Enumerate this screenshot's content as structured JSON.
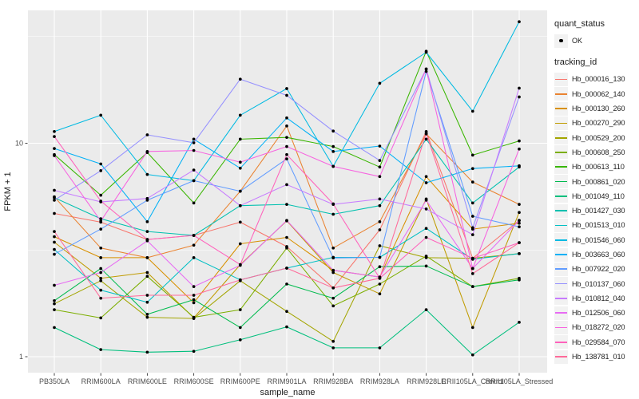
{
  "axes": {
    "x_title": "sample_name",
    "y_title": "FPKM + 1",
    "x_ticks": [
      "PB350LA",
      "RRIM600LA",
      "RRIM600LE",
      "RRIM600SE",
      "RRIM600PE",
      "RRIM901LA",
      "RRIM928BA",
      "RRIM928LA",
      "RRIM928LE",
      "RRII105LA_Control",
      "RRII105LA_Stressed"
    ],
    "y_ticks": [
      "1",
      "10"
    ]
  },
  "legend": {
    "quant_status_title": "quant_status",
    "ok_label": "OK",
    "tracking_id_title": "tracking_id"
  },
  "colors": {
    "panel_bg": "#EBEBEB",
    "grid": "#FFFFFF",
    "tick_text": "#4D4D4D",
    "axis_title_text": "#1a1a1a",
    "tick_mark": "#333333",
    "point": "#000000",
    "key_bg": "#F2F2F2"
  },
  "chart_data": {
    "type": "line",
    "title": "",
    "xlabel": "sample_name",
    "ylabel": "FPKM + 1",
    "x_categories": [
      "PB350LA",
      "RRIM600LA",
      "RRIM600LE",
      "RRIM600SE",
      "RRIM600PE",
      "RRIM901LA",
      "RRIM928BA",
      "RRIM928LA",
      "RRIM928LE",
      "RRII105LA_Control",
      "RRII105LA_Stressed"
    ],
    "y_scale": "log10",
    "y_ticks": [
      1,
      10
    ],
    "y_minor_ticks": [
      3.162,
      31.62
    ],
    "ylim": [
      0.84,
      41.5
    ],
    "grid": "white major+minor on grey panel",
    "legend_position": "right",
    "point_shape": "small black dot (quant_status OK)",
    "series": [
      {
        "name": "Hb_000016_130",
        "color": "#F8766D",
        "values": [
          4.69,
          4.27,
          3.54,
          3.7,
          4.27,
          3.28,
          2.1,
          3.93,
          11.35,
          2.89,
          4.35
        ]
      },
      {
        "name": "Hb_000062_140",
        "color": "#EA8331",
        "values": [
          5.61,
          3.23,
          2.91,
          3.33,
          5.96,
          12.05,
          3.23,
          4.29,
          11.05,
          6.58,
          5.17
        ]
      },
      {
        "name": "Hb_000130_260",
        "color": "#D89000",
        "values": [
          3.65,
          2.91,
          2.91,
          1.79,
          3.38,
          3.62,
          2.54,
          2.36,
          6.98,
          3.96,
          4.22
        ]
      },
      {
        "name": "Hb_000270_290",
        "color": "#C09B00",
        "values": [
          3.44,
          2.33,
          2.48,
          1.52,
          2.7,
          4.33,
          2.48,
          1.97,
          5.48,
          1.37,
          4.74
        ]
      },
      {
        "name": "Hb_000529_200",
        "color": "#A3A500",
        "values": [
          1.77,
          2.27,
          1.53,
          1.51,
          2.27,
          1.63,
          1.18,
          3.31,
          2.91,
          2.89,
          3.04
        ]
      },
      {
        "name": "Hb_000608_250",
        "color": "#7CAE00",
        "values": [
          1.66,
          1.52,
          2.38,
          1.53,
          1.66,
          3.23,
          1.73,
          2.19,
          2.96,
          2.13,
          2.33
        ]
      },
      {
        "name": "Hb_000613_110",
        "color": "#39B600",
        "values": [
          8.85,
          5.71,
          9.05,
          5.25,
          10.45,
          10.65,
          9.65,
          7.74,
          26.97,
          8.8,
          10.25
        ]
      },
      {
        "name": "Hb_000861_020",
        "color": "#00BB4E",
        "values": [
          1.83,
          2.59,
          1.58,
          1.85,
          1.37,
          2.19,
          1.88,
          2.64,
          2.66,
          2.13,
          2.29
        ]
      },
      {
        "name": "Hb_001049_110",
        "color": "#00BF7D",
        "values": [
          1.37,
          1.08,
          1.05,
          1.06,
          1.2,
          1.38,
          1.1,
          1.1,
          1.66,
          1.02,
          1.45
        ]
      },
      {
        "name": "Hb_001427_030",
        "color": "#00C0AF",
        "values": [
          5.56,
          4.43,
          3.86,
          3.7,
          5.1,
          5.17,
          4.65,
          5.1,
          10.45,
          5.25,
          7.74
        ]
      },
      {
        "name": "Hb_001513_010",
        "color": "#00BFC4",
        "values": [
          3.18,
          2.05,
          1.8,
          2.91,
          2.29,
          2.6,
          2.92,
          2.92,
          3.99,
          2.86,
          3.04
        ]
      },
      {
        "name": "Hb_001546_060",
        "color": "#00BAE2",
        "values": [
          11.35,
          13.53,
          7.14,
          6.68,
          13.53,
          18.03,
          7.79,
          19.09,
          26.68,
          14.12,
          37.09
        ]
      },
      {
        "name": "Hb_003663_060",
        "color": "#00B0F6",
        "values": [
          9.45,
          8.0,
          4.29,
          10.45,
          7.64,
          13.14,
          9.15,
          9.7,
          6.53,
          7.61,
          7.84
        ]
      },
      {
        "name": "Hb_007922_020",
        "color": "#619CFF",
        "values": [
          3.02,
          3.96,
          5.41,
          6.68,
          5.96,
          8.45,
          2.9,
          2.92,
          21.69,
          4.55,
          4.06
        ]
      },
      {
        "name": "Hb_010137_060",
        "color": "#9590FF",
        "values": [
          5.41,
          7.44,
          10.95,
          10.05,
          19.96,
          16.76,
          11.4,
          8.3,
          22.27,
          4.02,
          16.47
        ]
      },
      {
        "name": "Hb_010812_040",
        "color": "#C77CFF",
        "values": [
          6.02,
          5.31,
          5.51,
          7.49,
          5.1,
          6.4,
          5.17,
          5.48,
          4.92,
          3.73,
          18.12
        ]
      },
      {
        "name": "Hb_012506_060",
        "color": "#E76BF3",
        "values": [
          2.16,
          2.48,
          3.49,
          2.13,
          2.68,
          4.35,
          2.54,
          2.36,
          5.41,
          2.59,
          4.35
        ]
      },
      {
        "name": "Hb_018272_020",
        "color": "#F763E0",
        "values": [
          8.75,
          4.32,
          9.15,
          9.25,
          8.15,
          9.65,
          7.79,
          6.98,
          22.27,
          2.59,
          9.4
        ]
      },
      {
        "name": "Hb_029584_070",
        "color": "#FF62BC",
        "values": [
          10.75,
          5.36,
          3.54,
          3.7,
          2.7,
          8.85,
          5.2,
          2.33,
          3.62,
          2.89,
          3.42
        ]
      },
      {
        "name": "Hb_138781_010",
        "color": "#FF6A9A",
        "values": [
          3.86,
          1.88,
          1.94,
          1.94,
          2.29,
          2.6,
          2.1,
          2.33,
          11.15,
          2.45,
          3.42
        ]
      }
    ]
  }
}
